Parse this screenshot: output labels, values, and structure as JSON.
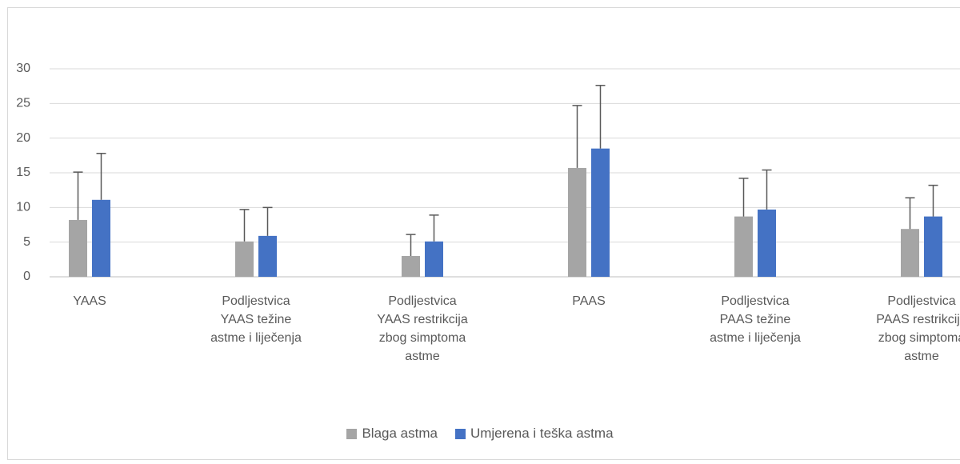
{
  "chart_data": {
    "type": "bar",
    "categories": [
      "YAAS",
      "Podljestvica YAAS težine astme i liječenja",
      "Podljestvica YAAS restrikcija zbog simptoma astme",
      "PAAS",
      "Podljestvica PAAS težine astme i liječenja",
      "Podljestvica PAAS restrikcija zbog simptoma astme"
    ],
    "series": [
      {
        "name": "Blaga astma",
        "color": "#a5a5a5",
        "values": [
          8.2,
          5.1,
          3.0,
          15.7,
          8.7,
          6.9
        ],
        "errors": [
          6.9,
          4.6,
          3.1,
          9.0,
          5.5,
          4.5
        ]
      },
      {
        "name": "Umjerena i teška astma",
        "color": "#4472c4",
        "values": [
          11.1,
          5.9,
          5.1,
          18.5,
          9.7,
          8.7
        ],
        "errors": [
          6.7,
          4.1,
          3.8,
          9.1,
          5.7,
          4.5
        ]
      }
    ],
    "ylim": [
      0,
      30
    ],
    "yticks": [
      0,
      5,
      10,
      15,
      20,
      25,
      30
    ],
    "grid": true,
    "legend": "bottom"
  }
}
